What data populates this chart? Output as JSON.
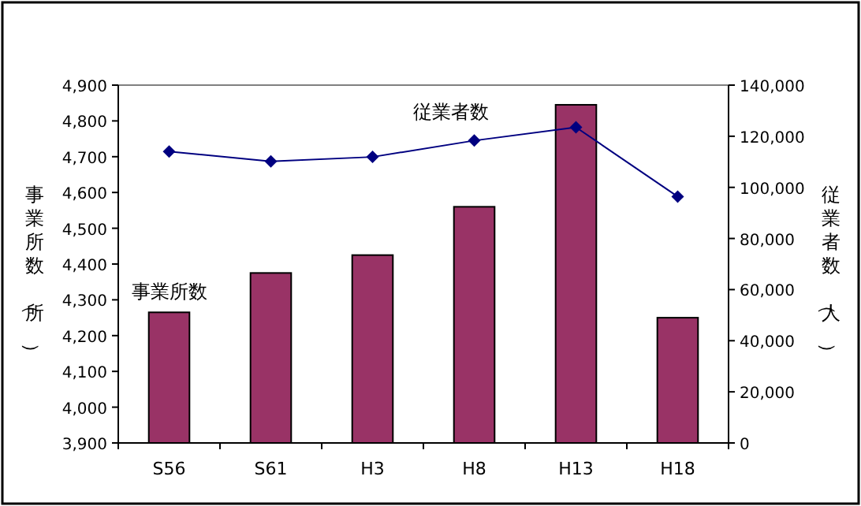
{
  "chart_data": {
    "type": "bar",
    "categories": [
      "S56",
      "S61",
      "H3",
      "H8",
      "H13",
      "H18"
    ],
    "series": [
      {
        "name": "事業所数",
        "color": "#993366",
        "values": [
          4265,
          4375,
          4425,
          4560,
          4845,
          4250
        ]
      },
      {
        "name": "従業者数",
        "type": "line",
        "axis": "y2",
        "color": "#000080",
        "marker": "diamond",
        "values": [
          114000,
          110200,
          111900,
          118300,
          123500,
          96400
        ]
      }
    ],
    "ylabel": "事業所数（所）",
    "y2label": "従業者数（人）",
    "ylim": [
      3900,
      4900
    ],
    "yticks": [
      {
        "value": 3900,
        "label": "3,900"
      },
      {
        "value": 4000,
        "label": "4,000"
      },
      {
        "value": 4100,
        "label": "4,100"
      },
      {
        "value": 4200,
        "label": "4,200"
      },
      {
        "value": 4300,
        "label": "4,300"
      },
      {
        "value": 4400,
        "label": "4,400"
      },
      {
        "value": 4500,
        "label": "4,500"
      },
      {
        "value": 4600,
        "label": "4,600"
      },
      {
        "value": 4700,
        "label": "4,700"
      },
      {
        "value": 4800,
        "label": "4,800"
      },
      {
        "value": 4900,
        "label": "4,900"
      }
    ],
    "y2lim": [
      0,
      140000
    ],
    "y2ticks": [
      0,
      {
        "value": 20000,
        "label": "20,000"
      },
      {
        "value": 40000,
        "label": "40,000"
      },
      {
        "value": 60000,
        "label": "60,000"
      },
      {
        "value": 80000,
        "label": "80,000"
      },
      {
        "value": 100000,
        "label": "100,000"
      },
      {
        "value": 120000,
        "label": "120,000"
      },
      {
        "value": 140000,
        "label": "140,000"
      }
    ],
    "grid": false,
    "legend": false
  }
}
